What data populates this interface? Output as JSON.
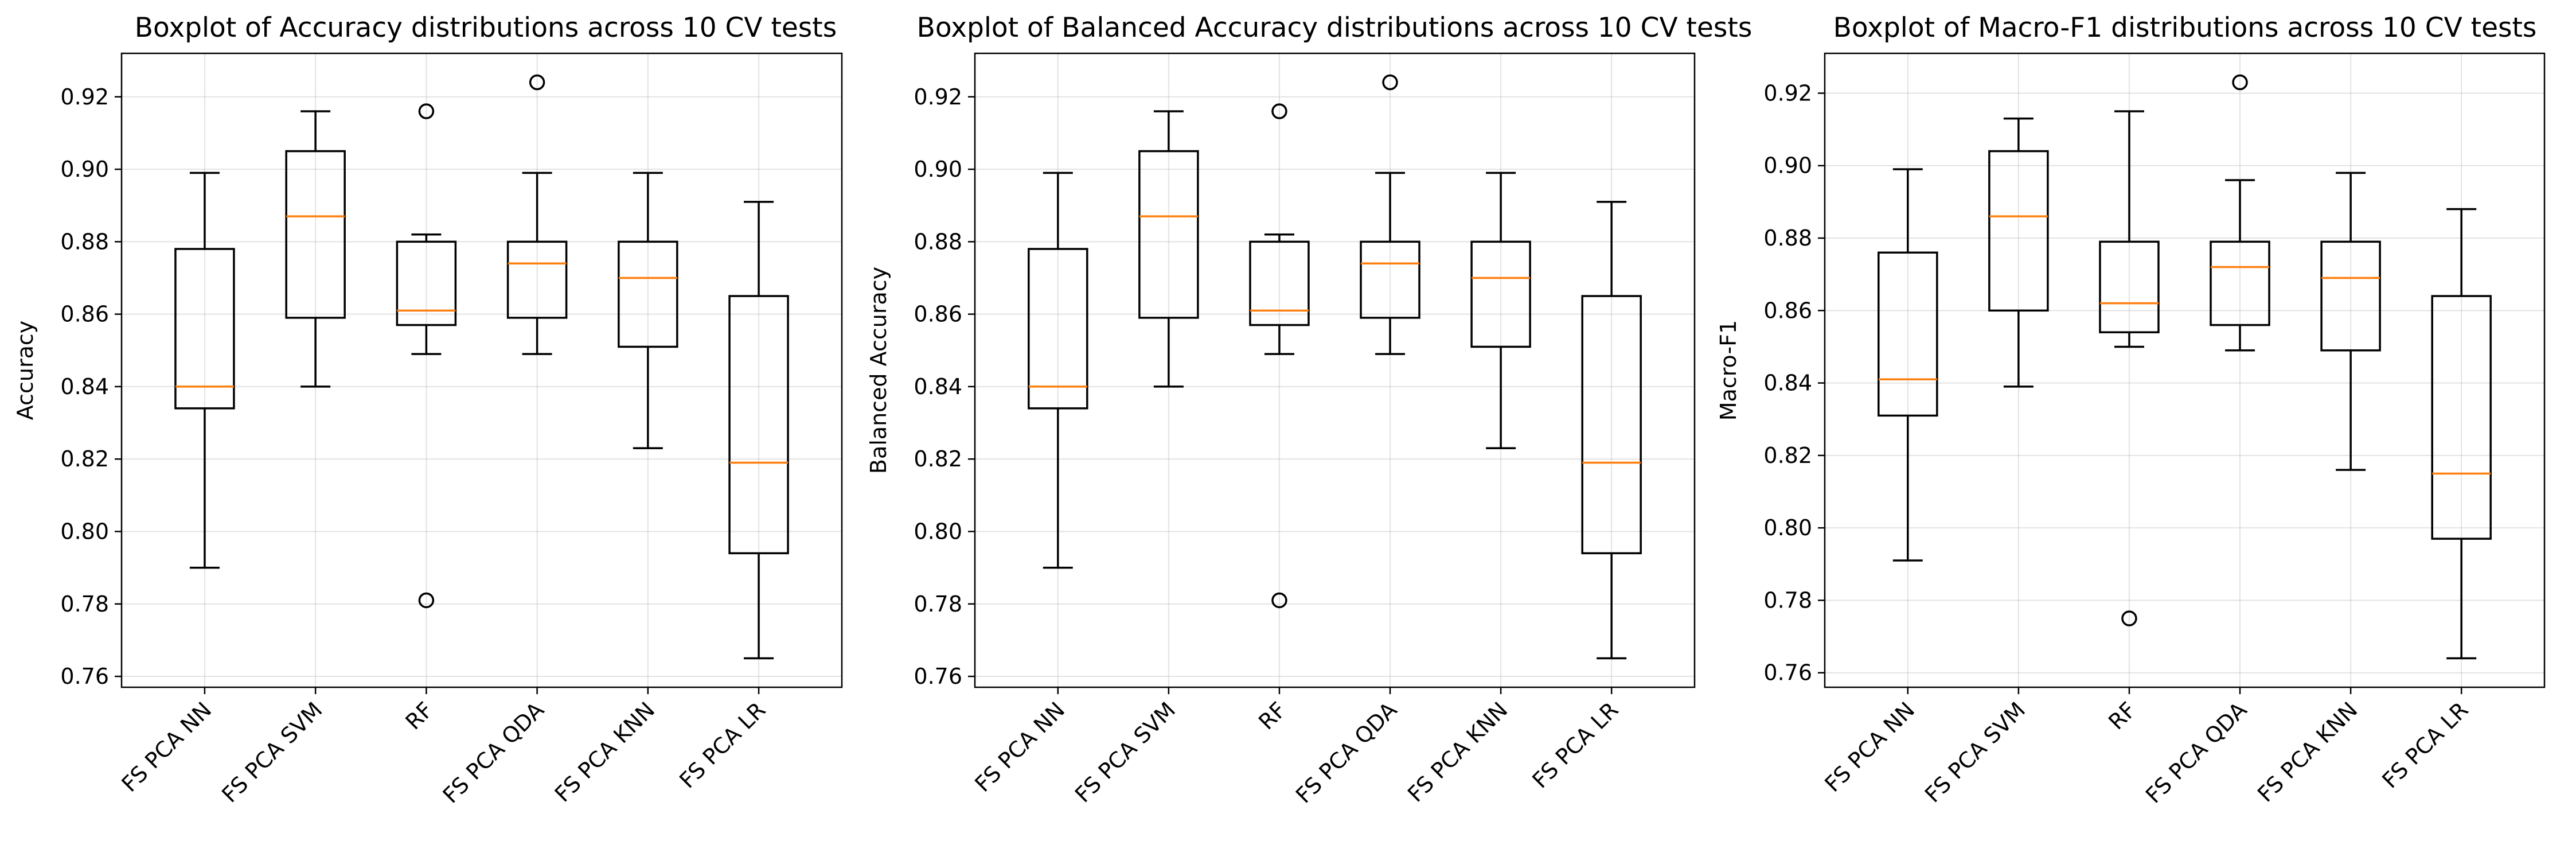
{
  "chart_data": [
    {
      "type": "boxplot",
      "title": "Boxplot of Accuracy distributions across 10 CV tests",
      "xlabel": "",
      "ylabel": "Accuracy",
      "ylim": [
        0.757,
        0.932
      ],
      "yticks": [
        0.76,
        0.78,
        0.8,
        0.82,
        0.84,
        0.86,
        0.88,
        0.9,
        0.92
      ],
      "grid": true,
      "categories": [
        "FS PCA NN",
        "FS PCA SVM",
        "RF",
        "FS PCA QDA",
        "FS PCA KNN",
        "FS PCA LR"
      ],
      "boxes": [
        {
          "whislo": 0.79,
          "q1": 0.834,
          "med": 0.84,
          "q3": 0.878,
          "whishi": 0.899,
          "fliers": []
        },
        {
          "whislo": 0.84,
          "q1": 0.859,
          "med": 0.887,
          "q3": 0.905,
          "whishi": 0.916,
          "fliers": []
        },
        {
          "whislo": 0.849,
          "q1": 0.857,
          "med": 0.861,
          "q3": 0.88,
          "whishi": 0.882,
          "fliers": [
            0.916,
            0.781
          ]
        },
        {
          "whislo": 0.849,
          "q1": 0.859,
          "med": 0.874,
          "q3": 0.88,
          "whishi": 0.899,
          "fliers": [
            0.924
          ]
        },
        {
          "whislo": 0.823,
          "q1": 0.851,
          "med": 0.87,
          "q3": 0.88,
          "whishi": 0.899,
          "fliers": []
        },
        {
          "whislo": 0.765,
          "q1": 0.794,
          "med": 0.819,
          "q3": 0.865,
          "whishi": 0.891,
          "fliers": []
        }
      ]
    },
    {
      "type": "boxplot",
      "title": "Boxplot of Balanced Accuracy distributions across 10 CV tests",
      "xlabel": "",
      "ylabel": "Balanced Accuracy",
      "ylim": [
        0.757,
        0.932
      ],
      "yticks": [
        0.76,
        0.78,
        0.8,
        0.82,
        0.84,
        0.86,
        0.88,
        0.9,
        0.92
      ],
      "grid": true,
      "categories": [
        "FS PCA NN",
        "FS PCA SVM",
        "RF",
        "FS PCA QDA",
        "FS PCA KNN",
        "FS PCA LR"
      ],
      "boxes": [
        {
          "whislo": 0.79,
          "q1": 0.834,
          "med": 0.84,
          "q3": 0.878,
          "whishi": 0.899,
          "fliers": []
        },
        {
          "whislo": 0.84,
          "q1": 0.859,
          "med": 0.887,
          "q3": 0.905,
          "whishi": 0.916,
          "fliers": []
        },
        {
          "whislo": 0.849,
          "q1": 0.857,
          "med": 0.861,
          "q3": 0.88,
          "whishi": 0.882,
          "fliers": [
            0.916,
            0.781
          ]
        },
        {
          "whislo": 0.849,
          "q1": 0.859,
          "med": 0.874,
          "q3": 0.88,
          "whishi": 0.899,
          "fliers": [
            0.924
          ]
        },
        {
          "whislo": 0.823,
          "q1": 0.851,
          "med": 0.87,
          "q3": 0.88,
          "whishi": 0.899,
          "fliers": []
        },
        {
          "whislo": 0.765,
          "q1": 0.794,
          "med": 0.819,
          "q3": 0.865,
          "whishi": 0.891,
          "fliers": []
        }
      ]
    },
    {
      "type": "boxplot",
      "title": "Boxplot of Macro-F1 distributions across 10 CV tests",
      "xlabel": "",
      "ylabel": "Macro-F1",
      "ylim": [
        0.756,
        0.931
      ],
      "yticks": [
        0.76,
        0.78,
        0.8,
        0.82,
        0.84,
        0.86,
        0.88,
        0.9,
        0.92
      ],
      "grid": true,
      "categories": [
        "FS PCA NN",
        "FS PCA SVM",
        "RF",
        "FS PCA QDA",
        "FS PCA KNN",
        "FS PCA LR"
      ],
      "boxes": [
        {
          "whislo": 0.791,
          "q1": 0.831,
          "med": 0.841,
          "q3": 0.876,
          "whishi": 0.899,
          "fliers": []
        },
        {
          "whislo": 0.839,
          "q1": 0.86,
          "med": 0.886,
          "q3": 0.904,
          "whishi": 0.913,
          "fliers": []
        },
        {
          "whislo": 0.85,
          "q1": 0.854,
          "med": 0.862,
          "q3": 0.879,
          "whishi": 0.915,
          "fliers": [
            0.775
          ]
        },
        {
          "whislo": 0.849,
          "q1": 0.856,
          "med": 0.872,
          "q3": 0.879,
          "whishi": 0.896,
          "fliers": [
            0.923
          ]
        },
        {
          "whislo": 0.816,
          "q1": 0.849,
          "med": 0.869,
          "q3": 0.879,
          "whishi": 0.898,
          "fliers": []
        },
        {
          "whislo": 0.764,
          "q1": 0.797,
          "med": 0.815,
          "q3": 0.864,
          "whishi": 0.888,
          "fliers": []
        }
      ]
    }
  ]
}
